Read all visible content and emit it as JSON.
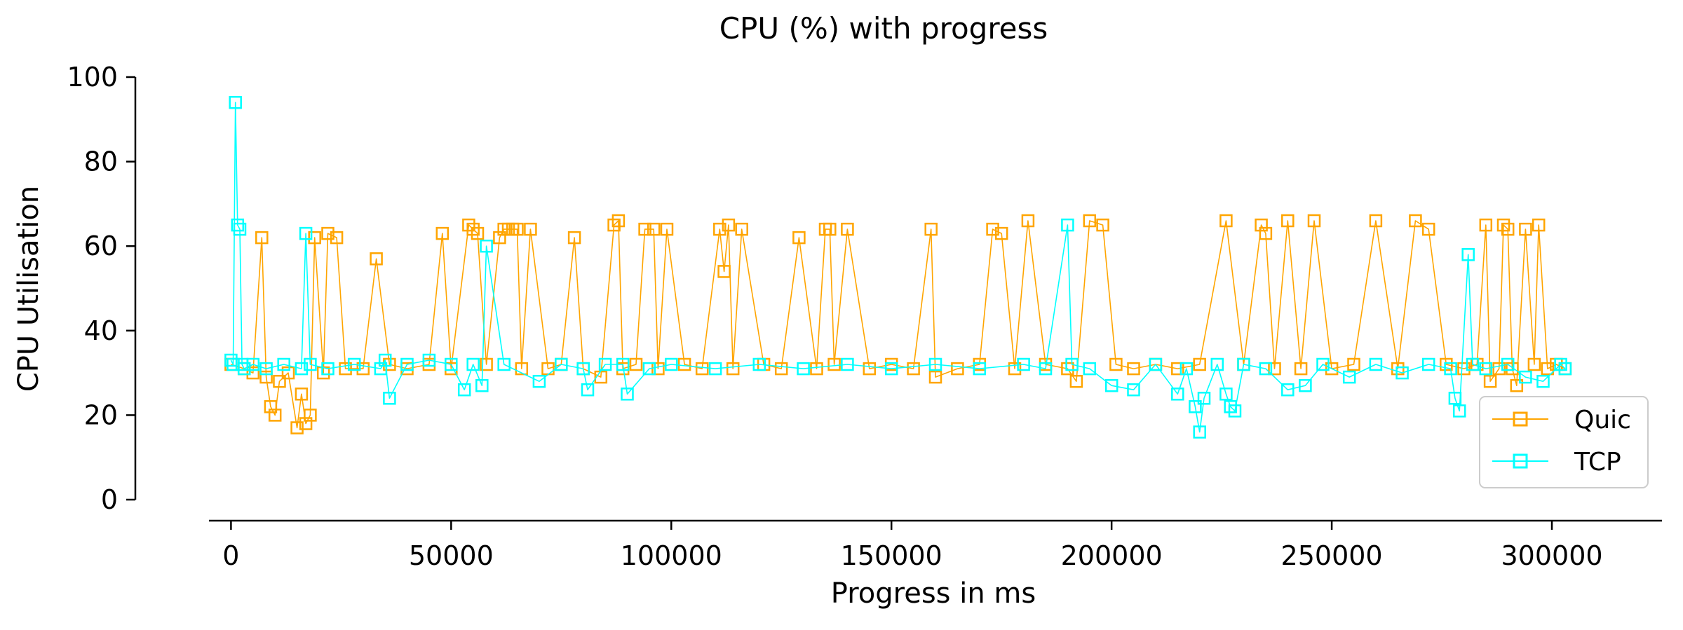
{
  "chart_data": {
    "type": "line",
    "title": "CPU (%) with progress",
    "xlabel": "Progress in ms",
    "ylabel": "CPU Utilisation",
    "xlim": [
      -5000,
      325000
    ],
    "ylim": [
      0,
      100
    ],
    "xticks": [
      0,
      50000,
      100000,
      150000,
      200000,
      250000,
      300000
    ],
    "xtick_labels": [
      "0",
      "50000",
      "100000",
      "150000",
      "200000",
      "250000",
      "300000"
    ],
    "yticks": [
      0,
      20,
      40,
      60,
      80,
      100
    ],
    "ytick_labels": [
      "0",
      "20",
      "40",
      "60",
      "80",
      "100"
    ],
    "grid": false,
    "legend_position": "bottom-right",
    "marker": "square",
    "colors": {
      "Quic": "#FFA500",
      "TCP": "#00FFFF"
    },
    "series": [
      {
        "name": "Quic",
        "color": "#FFA500",
        "x": [
          0,
          3000,
          5000,
          7000,
          8000,
          9000,
          10000,
          11000,
          13000,
          15000,
          16000,
          17000,
          18000,
          19000,
          21000,
          22000,
          24000,
          26000,
          30000,
          33000,
          36000,
          40000,
          45000,
          48000,
          50000,
          54000,
          55000,
          56000,
          58000,
          61000,
          62000,
          63000,
          64000,
          65000,
          66000,
          68000,
          72000,
          75000,
          78000,
          80000,
          84000,
          87000,
          88000,
          89000,
          92000,
          94000,
          96000,
          97000,
          99000,
          103000,
          107000,
          111000,
          112000,
          113000,
          114000,
          116000,
          121000,
          125000,
          129000,
          133000,
          135000,
          136000,
          137000,
          140000,
          145000,
          150000,
          155000,
          159000,
          160000,
          165000,
          170000,
          173000,
          175000,
          178000,
          181000,
          185000,
          190000,
          192000,
          195000,
          198000,
          201000,
          205000,
          210000,
          215000,
          220000,
          226000,
          230000,
          234000,
          235000,
          237000,
          240000,
          243000,
          246000,
          250000,
          255000,
          260000,
          265000,
          269000,
          272000,
          276000,
          280000,
          283000,
          285000,
          286000,
          288000,
          289000,
          290000,
          291000,
          292000,
          294000,
          296000,
          297000,
          299000,
          301000,
          303000
        ],
        "y": [
          32,
          31,
          30,
          62,
          29,
          22,
          20,
          28,
          30,
          17,
          25,
          18,
          20,
          62,
          30,
          63,
          62,
          31,
          31,
          57,
          32,
          31,
          32,
          63,
          31,
          65,
          64,
          63,
          32,
          62,
          64,
          64,
          64,
          64,
          31,
          64,
          31,
          32,
          62,
          31,
          29,
          65,
          66,
          31,
          32,
          64,
          64,
          31,
          64,
          32,
          31,
          64,
          54,
          65,
          31,
          64,
          32,
          31,
          62,
          31,
          64,
          64,
          32,
          64,
          31,
          32,
          31,
          64,
          29,
          31,
          32,
          64,
          63,
          31,
          66,
          32,
          31,
          28,
          66,
          65,
          32,
          31,
          32,
          31,
          32,
          66,
          32,
          65,
          63,
          31,
          66,
          31,
          66,
          31,
          32,
          66,
          31,
          66,
          64,
          32,
          31,
          32,
          65,
          28,
          31,
          65,
          64,
          31,
          27,
          64,
          32,
          65,
          31,
          32,
          31
        ]
      },
      {
        "name": "TCP",
        "color": "#00FFFF",
        "x": [
          0,
          500,
          1000,
          1500,
          2000,
          2500,
          3000,
          5000,
          8000,
          12000,
          16000,
          17000,
          18000,
          22000,
          28000,
          34000,
          35000,
          36000,
          40000,
          45000,
          50000,
          53000,
          55000,
          57000,
          58000,
          62000,
          70000,
          75000,
          80000,
          81000,
          85000,
          89000,
          90000,
          95000,
          100000,
          110000,
          120000,
          130000,
          140000,
          150000,
          160000,
          170000,
          180000,
          185000,
          190000,
          191000,
          195000,
          200000,
          205000,
          210000,
          215000,
          217000,
          219000,
          220000,
          221000,
          224000,
          226000,
          227000,
          228000,
          230000,
          235000,
          240000,
          244000,
          248000,
          254000,
          260000,
          266000,
          272000,
          277000,
          278000,
          279000,
          281000,
          282000,
          285000,
          290000,
          294000,
          298000,
          302000,
          303000
        ],
        "y": [
          33,
          32,
          94,
          65,
          64,
          32,
          31,
          32,
          31,
          32,
          31,
          63,
          32,
          31,
          32,
          31,
          33,
          24,
          32,
          33,
          32,
          26,
          32,
          27,
          60,
          32,
          28,
          32,
          31,
          26,
          32,
          32,
          25,
          31,
          32,
          31,
          32,
          31,
          32,
          31,
          32,
          31,
          32,
          31,
          65,
          32,
          31,
          27,
          26,
          32,
          25,
          31,
          22,
          16,
          24,
          32,
          25,
          22,
          21,
          32,
          31,
          26,
          27,
          32,
          29,
          32,
          30,
          32,
          31,
          24,
          21,
          58,
          32,
          31,
          32,
          29,
          28,
          32,
          31
        ]
      }
    ]
  }
}
